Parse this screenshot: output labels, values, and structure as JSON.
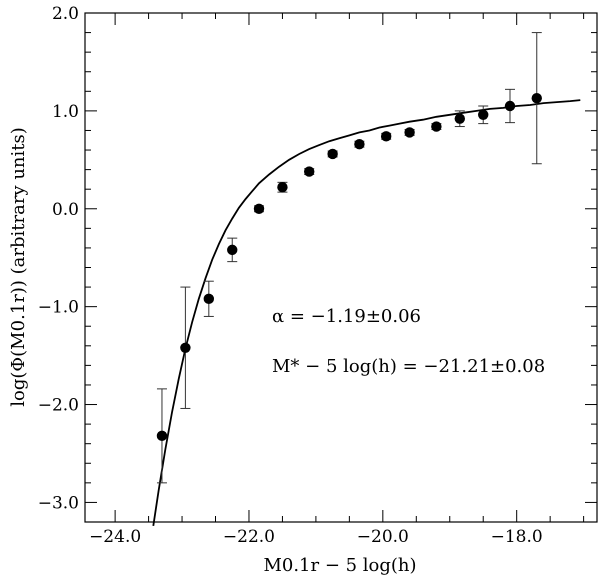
{
  "chart_data": {
    "type": "scatter",
    "xlabel": "M0.1r − 5 log(h)",
    "ylabel": "log(Φ(M0.1r))   (arbitrary units)",
    "xlim": [
      -24.45,
      -16.8
    ],
    "ylim": [
      -3.2,
      2.0
    ],
    "x_ticks": [
      -24.0,
      -22.0,
      -20.0,
      -18.0
    ],
    "x_tick_labels": [
      "−24.0",
      "−22.0",
      "−20.0",
      "−18.0"
    ],
    "y_ticks": [
      -3.0,
      -2.0,
      -1.0,
      0.0,
      1.0,
      2.0
    ],
    "y_tick_labels": [
      "−3.0",
      "−2.0",
      "−1.0",
      "0.0",
      "1.0",
      "2.0"
    ],
    "series": [
      {
        "kind": "points_with_errorbars",
        "x": [
          -23.3,
          -22.95,
          -22.6,
          -22.25,
          -21.85,
          -21.5,
          -21.1,
          -20.75,
          -20.35,
          -19.95,
          -19.6,
          -19.2,
          -18.85,
          -18.5,
          -18.1,
          -17.7
        ],
        "y": [
          -2.32,
          -1.42,
          -0.92,
          -0.42,
          0.0,
          0.22,
          0.38,
          0.56,
          0.66,
          0.74,
          0.78,
          0.84,
          0.92,
          0.96,
          1.05,
          1.13
        ],
        "err": [
          0.48,
          0.62,
          0.18,
          0.12,
          0.03,
          0.05,
          0.03,
          0.03,
          0.03,
          0.03,
          0.03,
          0.03,
          0.08,
          0.09,
          0.17,
          0.67
        ]
      },
      {
        "kind": "fit_curve",
        "x": [
          -23.43,
          -23.35,
          -23.25,
          -23.15,
          -23.05,
          -22.95,
          -22.85,
          -22.75,
          -22.65,
          -22.55,
          -22.45,
          -22.35,
          -22.25,
          -22.15,
          -22.05,
          -21.95,
          -21.85,
          -21.7,
          -21.55,
          -21.4,
          -21.25,
          -21.1,
          -20.95,
          -20.8,
          -20.65,
          -20.5,
          -20.35,
          -20.2,
          -20.05,
          -19.9,
          -19.75,
          -19.6,
          -19.4,
          -19.2,
          -19.0,
          -18.8,
          -18.6,
          -18.4,
          -18.2,
          -18.0,
          -17.8,
          -17.6,
          -17.4,
          -17.2,
          -17.05
        ],
        "y": [
          -3.24,
          -2.88,
          -2.46,
          -2.08,
          -1.74,
          -1.43,
          -1.16,
          -0.92,
          -0.71,
          -0.52,
          -0.36,
          -0.22,
          -0.1,
          0.01,
          0.1,
          0.18,
          0.26,
          0.35,
          0.43,
          0.5,
          0.56,
          0.61,
          0.65,
          0.69,
          0.72,
          0.75,
          0.78,
          0.8,
          0.83,
          0.85,
          0.87,
          0.89,
          0.91,
          0.94,
          0.96,
          0.98,
          1.0,
          1.02,
          1.03,
          1.05,
          1.06,
          1.08,
          1.09,
          1.1,
          1.11
        ]
      }
    ],
    "annotations": [
      "α = −1.19±0.06",
      "M* − 5 log(h) = −21.21±0.08"
    ],
    "grid": false,
    "legend": "none"
  }
}
